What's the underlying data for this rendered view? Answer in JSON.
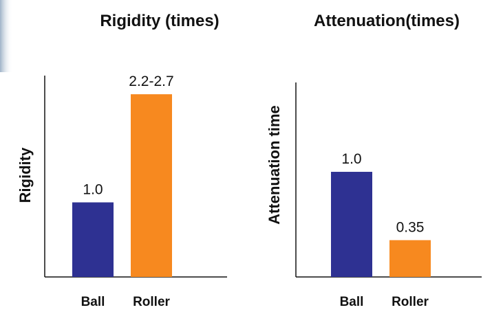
{
  "chart_data": [
    {
      "type": "bar",
      "title": "Rigidity (times)",
      "y_label": "Rigidity",
      "categories": [
        "Ball",
        "Roller"
      ],
      "values": [
        1.0,
        2.45
      ],
      "value_labels": [
        "1.0",
        "2.2-2.7"
      ],
      "colors": [
        "#2e3192",
        "#f7891f"
      ],
      "ylim": [
        0,
        2.7
      ]
    },
    {
      "type": "bar",
      "title": "Attenuation(times)",
      "y_label": "Attenuation time",
      "categories": [
        "Ball",
        "Roller"
      ],
      "values": [
        1.0,
        0.35
      ],
      "value_labels": [
        "1.0",
        "0.35"
      ],
      "colors": [
        "#2e3192",
        "#f7891f"
      ],
      "ylim": [
        0,
        1.85
      ]
    }
  ]
}
